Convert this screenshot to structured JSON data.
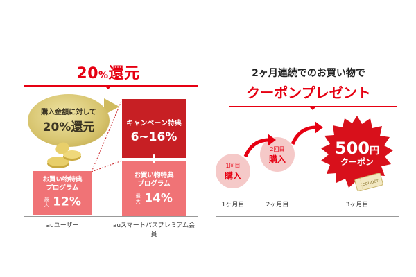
{
  "left": {
    "title_main": "20",
    "title_pct": "%",
    "title_rest": "還元",
    "coin_line1": "購入金額に対して",
    "coin_line2": "20%還元",
    "au_box": {
      "line1": "お買い物特典",
      "line2": "プログラム",
      "max": "最大",
      "value": "12%"
    },
    "campaign_box": {
      "label": "キャンペーン特典",
      "value": "6~16%"
    },
    "plus": "+",
    "premium_box": {
      "line1": "お買い物特典",
      "line2": "プログラム",
      "max": "最大",
      "value": "14%"
    },
    "au_user_label": "auユーザー",
    "premium_label": "auスマートパスプレミアム会員"
  },
  "right": {
    "subtitle": "2ヶ月連続でのお買い物で",
    "title": "クーポンプレゼント",
    "circle1": {
      "small": "1回目",
      "big": "購入"
    },
    "circle2": {
      "small": "2回目",
      "big": "購入"
    },
    "burst": {
      "number": "500",
      "unit": "円",
      "label": "クーポン"
    },
    "coupon_ticket": "coupon",
    "months": [
      "1ヶ月目",
      "2ヶ月目",
      "3ヶ月目"
    ]
  },
  "colors": {
    "accent": "#e60012",
    "dark_red": "#c71f24",
    "pink": "#f07376",
    "light_pink": "#f5c9c8",
    "gold": "#d7c46e"
  }
}
